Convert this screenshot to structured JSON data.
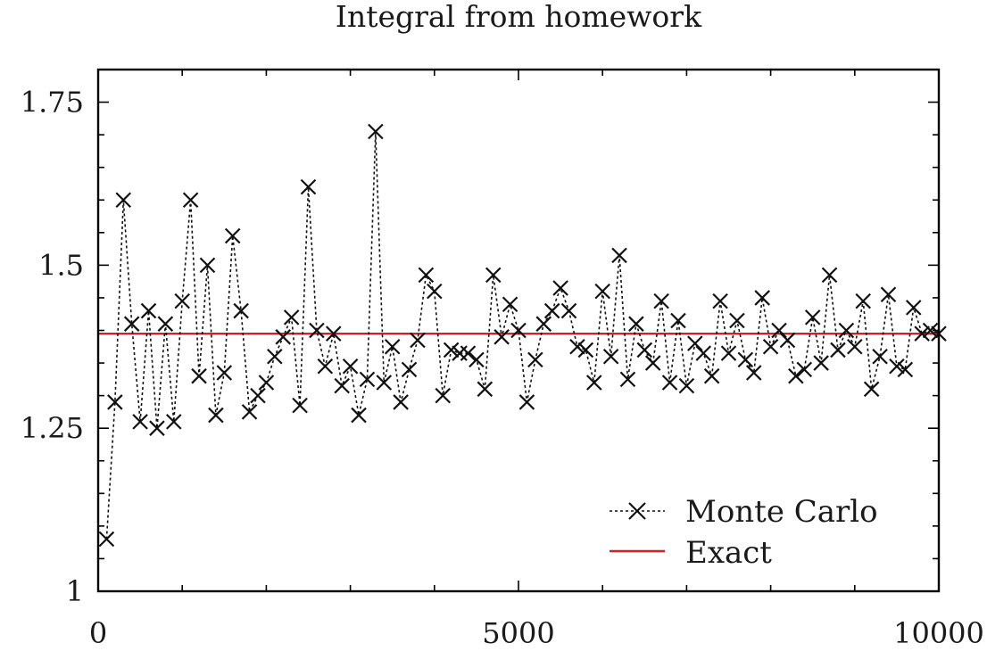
{
  "chart_data": {
    "type": "line",
    "title": "Integral from homework",
    "xlabel": "",
    "ylabel": "",
    "xlim": [
      0,
      10000
    ],
    "ylim": [
      1,
      1.8
    ],
    "xticks": [
      0,
      5000,
      10000
    ],
    "yticks": [
      1,
      1.25,
      1.5,
      1.75
    ],
    "x_tick_labels": [
      "0",
      "5000",
      "10000"
    ],
    "y_tick_labels": [
      "1",
      "1.25",
      "1.5",
      "1.75"
    ],
    "grid": false,
    "legend_position": "bottom-right",
    "series": [
      {
        "name": "Monte Carlo",
        "style": "dotted-line-with-x-markers",
        "color": "#111111",
        "x": [
          100,
          200,
          300,
          400,
          500,
          600,
          700,
          800,
          900,
          1000,
          1100,
          1200,
          1300,
          1400,
          1500,
          1600,
          1700,
          1800,
          1900,
          2000,
          2100,
          2200,
          2300,
          2400,
          2500,
          2600,
          2700,
          2800,
          2900,
          3000,
          3100,
          3200,
          3300,
          3400,
          3500,
          3600,
          3700,
          3800,
          3900,
          4000,
          4100,
          4200,
          4300,
          4400,
          4500,
          4600,
          4700,
          4800,
          4900,
          5000,
          5100,
          5200,
          5300,
          5400,
          5500,
          5600,
          5700,
          5800,
          5900,
          6000,
          6100,
          6200,
          6300,
          6400,
          6500,
          6600,
          6700,
          6800,
          6900,
          7000,
          7100,
          7200,
          7300,
          7400,
          7500,
          7600,
          7700,
          7800,
          7900,
          8000,
          8100,
          8200,
          8300,
          8400,
          8500,
          8600,
          8700,
          8800,
          8900,
          9000,
          9100,
          9200,
          9300,
          9400,
          9500,
          9600,
          9700,
          9800,
          9900,
          10000
        ],
        "y": [
          1.08,
          1.29,
          1.6,
          1.41,
          1.26,
          1.43,
          1.25,
          1.41,
          1.26,
          1.445,
          1.6,
          1.33,
          1.5,
          1.27,
          1.335,
          1.545,
          1.43,
          1.275,
          1.3,
          1.32,
          1.36,
          1.39,
          1.42,
          1.285,
          1.62,
          1.4,
          1.345,
          1.395,
          1.315,
          1.345,
          1.27,
          1.325,
          1.705,
          1.32,
          1.375,
          1.29,
          1.34,
          1.385,
          1.485,
          1.46,
          1.3,
          1.37,
          1.365,
          1.365,
          1.355,
          1.31,
          1.485,
          1.39,
          1.44,
          1.4,
          1.29,
          1.355,
          1.41,
          1.43,
          1.465,
          1.43,
          1.375,
          1.37,
          1.32,
          1.46,
          1.36,
          1.515,
          1.325,
          1.41,
          1.37,
          1.35,
          1.445,
          1.32,
          1.415,
          1.315,
          1.38,
          1.365,
          1.33,
          1.445,
          1.365,
          1.415,
          1.355,
          1.335,
          1.45,
          1.375,
          1.4,
          1.385,
          1.33,
          1.34,
          1.42,
          1.35,
          1.485,
          1.37,
          1.4,
          1.375,
          1.445,
          1.31,
          1.36,
          1.455,
          1.345,
          1.34,
          1.435,
          1.395,
          1.4,
          1.395
        ]
      },
      {
        "name": "Exact",
        "style": "solid",
        "color": "#d42020",
        "x": [
          0,
          10000
        ],
        "y": [
          1.395,
          1.395
        ]
      }
    ]
  }
}
